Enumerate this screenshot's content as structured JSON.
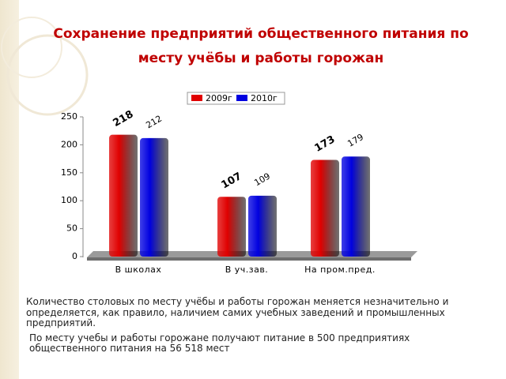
{
  "chart_data": {
    "type": "bar",
    "title": "Сохранение предприятий общественного питания по месту учёбы и работы горожан",
    "categories": [
      "В школах",
      "В уч.зав.",
      "На пром.пред."
    ],
    "series": [
      {
        "name": "2009г",
        "color": "#e00000",
        "values": [
          218,
          107,
          173
        ]
      },
      {
        "name": "2010г",
        "color": "#0000e0",
        "values": [
          212,
          109,
          179
        ]
      }
    ],
    "ylim": [
      0,
      250
    ],
    "yticks": [
      0,
      50,
      100,
      150,
      200,
      250
    ],
    "grid": false
  },
  "text": {
    "paragraphs": [
      "Количество столовых по месту учёбы и работы горожан меняется незначительно и определяется, как правило, наличием самих учебных заведений и промышленных предприятий.",
      "По месту учебы и работы горожане получают питание в 500 предприятиях общественного питания на 56 518 мест"
    ]
  }
}
